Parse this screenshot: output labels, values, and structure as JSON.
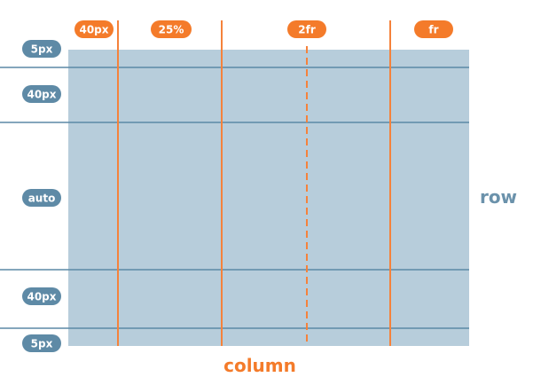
{
  "colors": {
    "grid_fill": "#b7cddb",
    "row_line": "#5b89a6",
    "row_pill": "#5e8aa6",
    "column_line": "#f5823b",
    "column_pill": "#f47b2a",
    "row_label": "#6b92ab",
    "column_label": "#f47b2a"
  },
  "columns": [
    {
      "label": "40px"
    },
    {
      "label": "25%"
    },
    {
      "label": "2fr"
    },
    {
      "label": "fr"
    }
  ],
  "rows": [
    {
      "label": "5px"
    },
    {
      "label": "40px"
    },
    {
      "label": "auto"
    },
    {
      "label": "40px"
    },
    {
      "label": "5px"
    }
  ],
  "axis": {
    "row_label": "row",
    "column_label": "column"
  }
}
